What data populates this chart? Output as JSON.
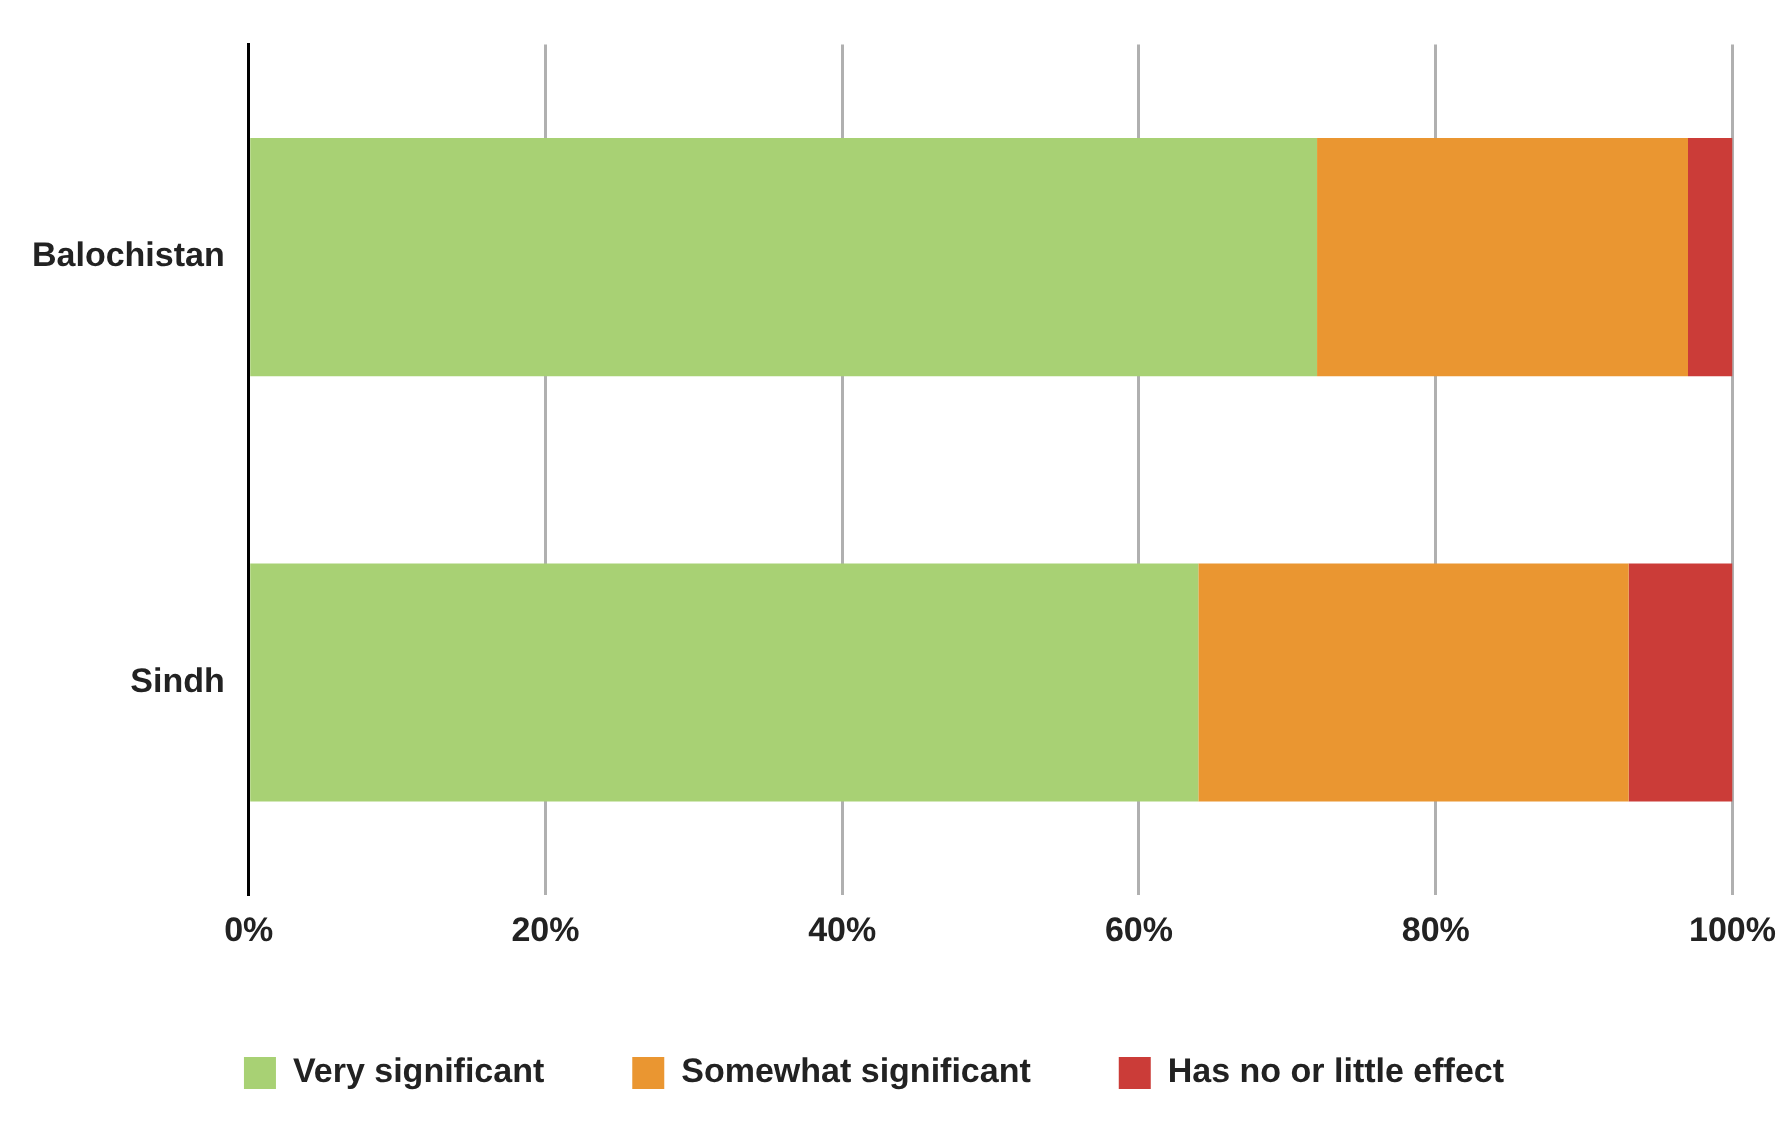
{
  "chart_data": {
    "type": "bar",
    "orientation": "horizontal",
    "stacked": true,
    "categories": [
      "Balochistan",
      "Sindh"
    ],
    "series": [
      {
        "name": "Very significant",
        "color": "#a8d174",
        "values": [
          72,
          64
        ]
      },
      {
        "name": "Somewhat significant",
        "color": "#ea9631",
        "values": [
          25,
          29
        ]
      },
      {
        "name": "Has no or little effect",
        "color": "#cb3c38",
        "values": [
          3,
          7
        ]
      }
    ],
    "xlim": [
      0,
      100
    ],
    "xticks": [
      {
        "value": 0,
        "label": "0%"
      },
      {
        "value": 20,
        "label": "20%"
      },
      {
        "value": 40,
        "label": "40%"
      },
      {
        "value": 60,
        "label": "60%"
      },
      {
        "value": 80,
        "label": "80%"
      },
      {
        "value": 100,
        "label": "100%"
      }
    ],
    "grid": "x",
    "legend": "bottom"
  }
}
